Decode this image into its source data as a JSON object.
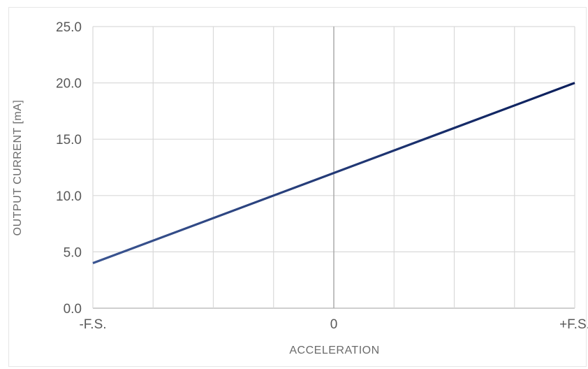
{
  "chart_data": {
    "type": "line",
    "title": "",
    "xlabel": "ACCELERATION",
    "ylabel": "OUTPUT CURRENT [mA]",
    "x_tick_labels": [
      "-F.S.",
      "0",
      "+F.S."
    ],
    "y_tick_labels": [
      "0.0",
      "5.0",
      "10.0",
      "15.0",
      "20.0",
      "25.0"
    ],
    "ylim": [
      0,
      25
    ],
    "xlim": [
      -1,
      1
    ],
    "grid": true,
    "legend": false,
    "series": [
      {
        "x": [
          -1,
          1
        ],
        "values": [
          4.0,
          20.0
        ],
        "color_start": "#3b5591",
        "color_end": "#0b1f5c"
      }
    ]
  }
}
